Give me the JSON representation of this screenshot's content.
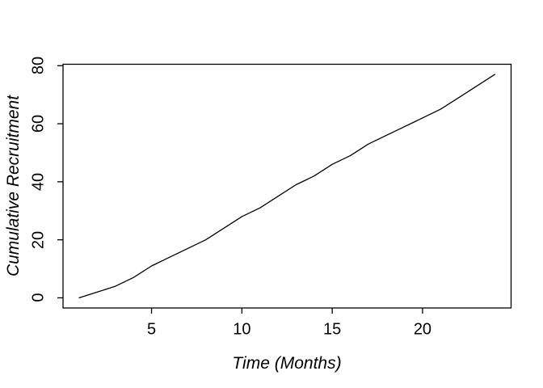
{
  "chart_data": {
    "type": "line",
    "title": "",
    "xlabel": "Time (Months)",
    "ylabel": "Cumulative Recruitment",
    "x": [
      1,
      2,
      3,
      4,
      5,
      6,
      7,
      8,
      9,
      10,
      11,
      12,
      13,
      14,
      15,
      16,
      17,
      18,
      19,
      20,
      21,
      22,
      23,
      24
    ],
    "series": [
      {
        "name": "cumulative-recruitment",
        "values": [
          0,
          2,
          4,
          7,
          11,
          14,
          17,
          20,
          24,
          28,
          31,
          35,
          39,
          42,
          46,
          49,
          53,
          56,
          59,
          62,
          65,
          69,
          73,
          77
        ]
      }
    ],
    "x_ticks": [
      5,
      10,
      15,
      20
    ],
    "y_ticks": [
      0,
      20,
      40,
      60,
      80
    ],
    "xlim": [
      0.1,
      24.9
    ],
    "ylim": [
      -3.5,
      80.5
    ],
    "grid": false,
    "legend": null,
    "box": true,
    "line_color": "#000000",
    "frame_color": "#000000",
    "background_color": "#ffffff"
  }
}
